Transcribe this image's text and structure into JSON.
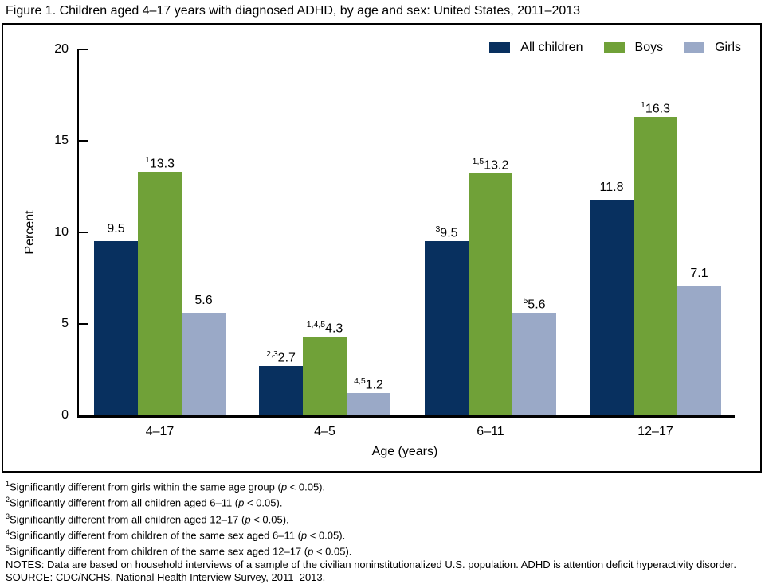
{
  "title": "Figure 1. Children aged 4–17 years with diagnosed ADHD, by age and sex: United States, 2011–2013",
  "chart_data": {
    "type": "bar",
    "categories": [
      "4–17",
      "4–5",
      "6–11",
      "12–17"
    ],
    "series": [
      {
        "name": "All children",
        "color": "#08305f",
        "values": [
          9.5,
          2.7,
          9.5,
          11.8
        ],
        "label_sups": [
          "",
          "2,3",
          "3",
          ""
        ]
      },
      {
        "name": "Boys",
        "color": "#70a138",
        "values": [
          13.3,
          4.3,
          13.2,
          16.3
        ],
        "label_sups": [
          "1",
          "1,4,5",
          "1,5",
          "1"
        ]
      },
      {
        "name": "Girls",
        "color": "#9aa9c7",
        "values": [
          5.6,
          1.2,
          5.6,
          7.1
        ],
        "label_sups": [
          "",
          "4,5",
          "5",
          ""
        ]
      }
    ],
    "title": "Figure 1. Children aged 4–17 years with diagnosed ADHD, by age and sex: United States, 2011–2013",
    "xlabel": "Age (years)",
    "ylabel": "Percent",
    "ylim": [
      0,
      20
    ],
    "yticks": [
      0,
      5,
      10,
      15,
      20
    ],
    "grid": false,
    "legend_position": "top-right"
  },
  "footnotes": [
    {
      "sup": "1",
      "text": "Significantly different from girls within the same age group (p < 0.05)."
    },
    {
      "sup": "2",
      "text": "Significantly different from all children aged 6–11 (p < 0.05)."
    },
    {
      "sup": "3",
      "text": "Significantly different from all children aged 12–17 (p < 0.05)."
    },
    {
      "sup": "4",
      "text": "Significantly different from children of the same sex aged 6–11 (p < 0.05)."
    },
    {
      "sup": "5",
      "text": "Significantly different from children of the same sex aged 12–17 (p < 0.05)."
    },
    {
      "sup": "",
      "text": "NOTES: Data are based on household interviews of a sample of the civilian noninstitutionalized U.S. population. ADHD is attention deficit hyperactivity disorder."
    },
    {
      "sup": "",
      "text": "SOURCE: CDC/NCHS, National Health Interview Survey, 2011–2013."
    }
  ]
}
